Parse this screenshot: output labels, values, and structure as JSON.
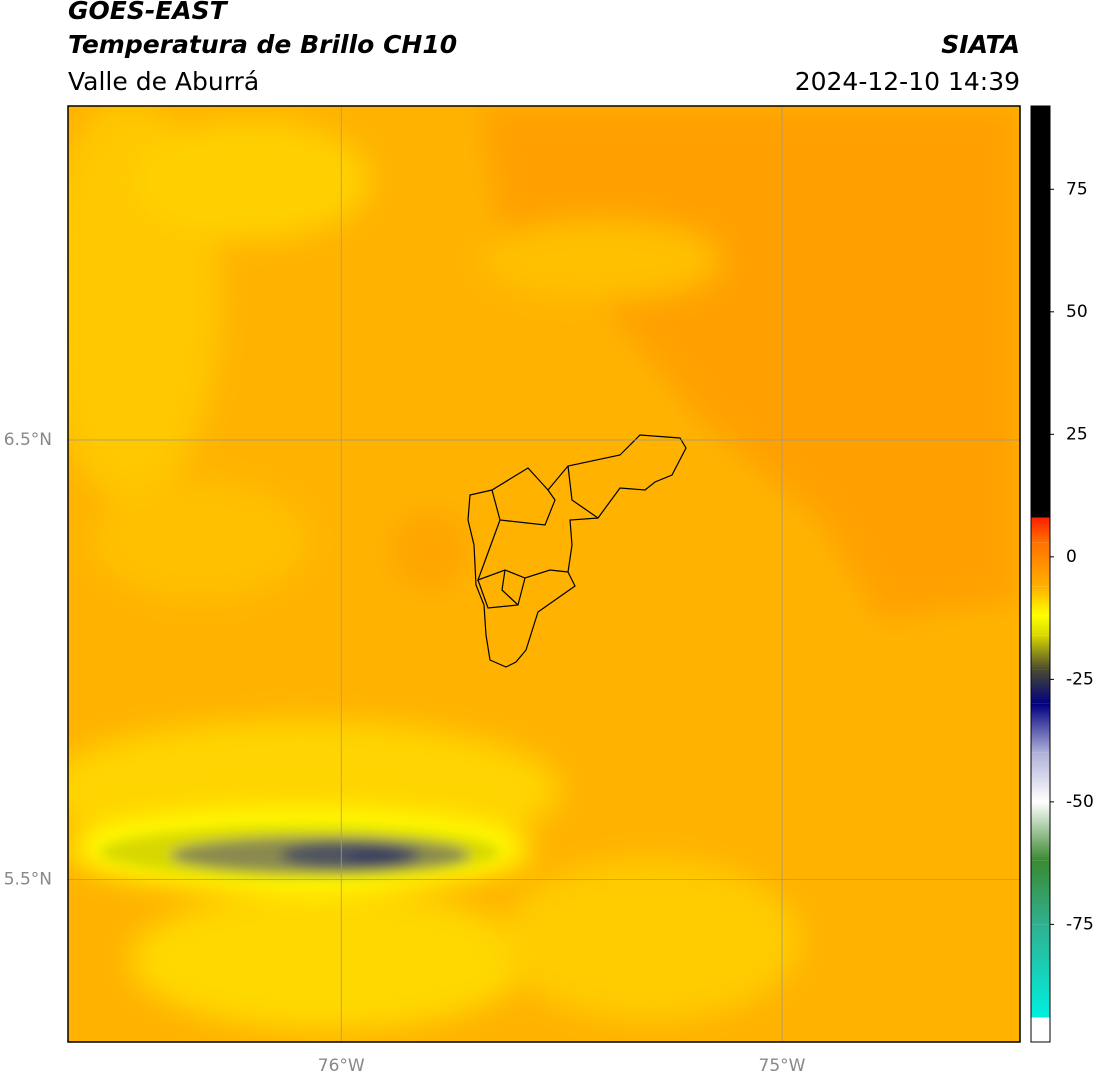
{
  "header": {
    "title": "GOES-EAST",
    "subtitle": "Temperatura de Brillo CH10",
    "region": "Valle de Aburrá",
    "source": "SIATA",
    "datetime": "2024-12-10 14:39"
  },
  "map": {
    "xlim": [
      -76.62,
      -74.46
    ],
    "ylim": [
      5.13,
      7.26
    ],
    "xticks": [
      {
        "value": -76,
        "label": "76°W"
      },
      {
        "value": -75,
        "label": "75°W"
      }
    ],
    "yticks": [
      {
        "value": 6.5,
        "label": "6.5°N"
      },
      {
        "value": 5.5,
        "label": "5.5°N"
      }
    ],
    "grid": true
  },
  "colorbar": {
    "lim": [
      -99,
      92
    ],
    "ticks": [
      75,
      50,
      25,
      0,
      -25,
      -50,
      -75
    ],
    "colormap": [
      {
        "value": -99,
        "color": "#ffffff"
      },
      {
        "value": -94,
        "color": "#ffffff"
      },
      {
        "value": -94,
        "color": "#00f0e0"
      },
      {
        "value": -75,
        "color": "#30b090"
      },
      {
        "value": -62,
        "color": "#3a8a30"
      },
      {
        "value": -50,
        "color": "#ffffff"
      },
      {
        "value": -40,
        "color": "#b0b0d8"
      },
      {
        "value": -30,
        "color": "#000080"
      },
      {
        "value": -23,
        "color": "#4a4a30"
      },
      {
        "value": -16,
        "color": "#d8d800"
      },
      {
        "value": -12,
        "color": "#ffff00"
      },
      {
        "value": -6,
        "color": "#ffb000"
      },
      {
        "value": 3,
        "color": "#ff7000"
      },
      {
        "value": 8,
        "color": "#ff2000"
      },
      {
        "value": 8,
        "color": "#000000"
      },
      {
        "value": 92,
        "color": "#000000"
      }
    ]
  }
}
